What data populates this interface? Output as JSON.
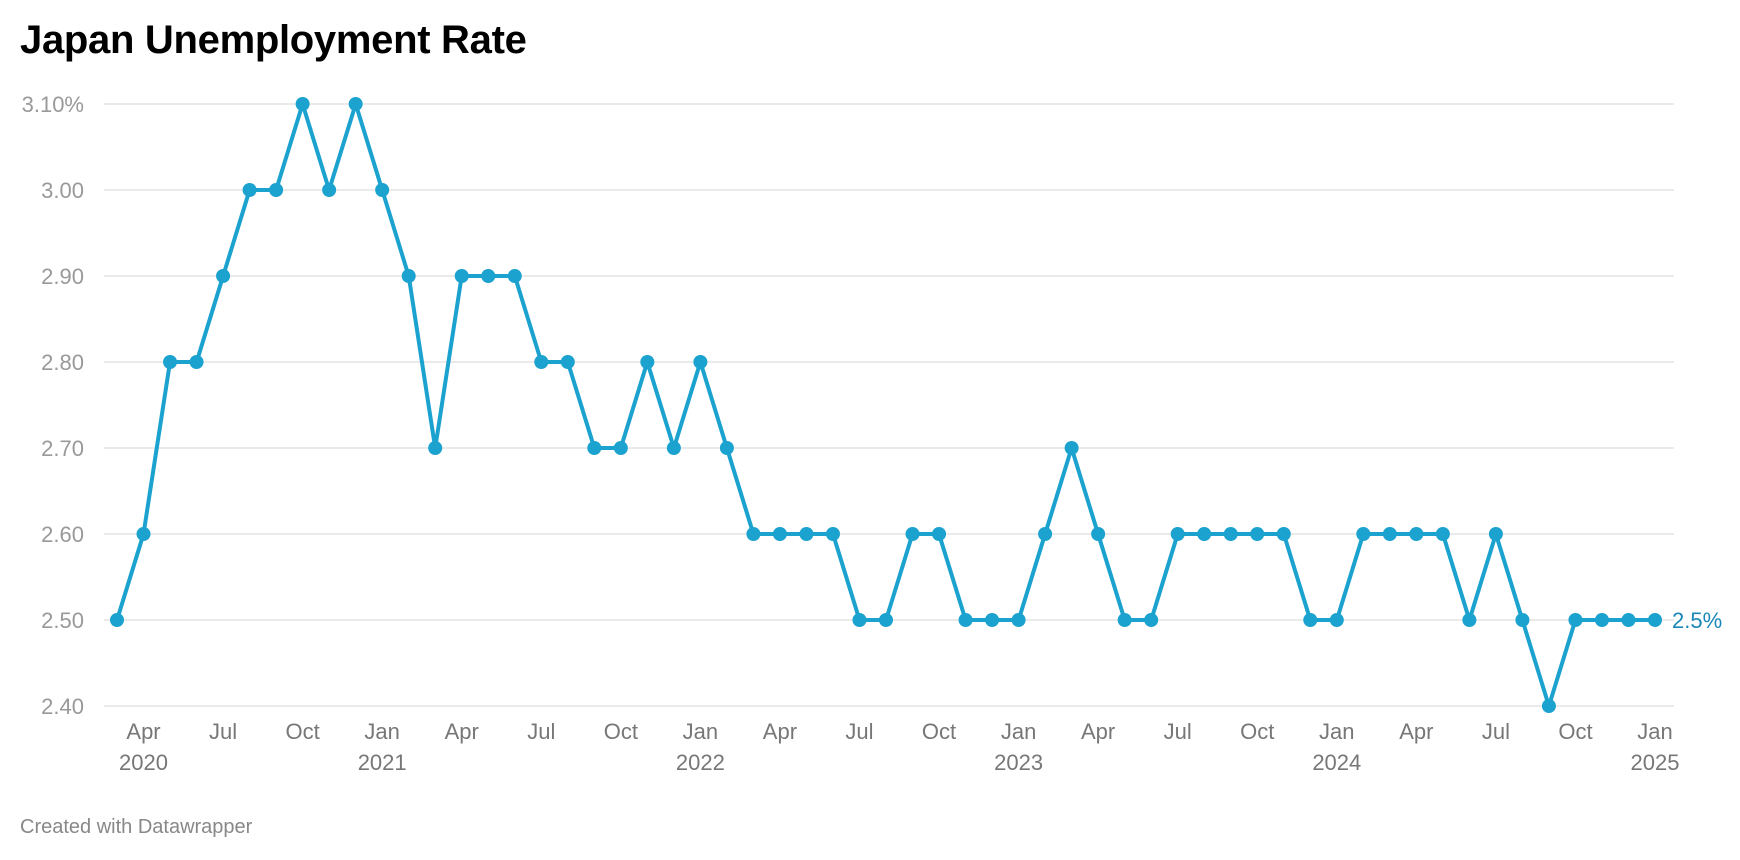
{
  "title": "Japan Unemployment Rate",
  "footer": "Created with Datawrapper",
  "colors": {
    "line": "#1ba2cf",
    "end_label": "#1a87b8",
    "grid": "#e3e3e3"
  },
  "chart_data": {
    "type": "line",
    "title": "Japan Unemployment Rate",
    "xlabel": "",
    "ylabel": "",
    "ylim": [
      2.4,
      3.1
    ],
    "y_ticks": [
      {
        "value": 3.1,
        "label": "3.10%"
      },
      {
        "value": 3.0,
        "label": "3.00"
      },
      {
        "value": 2.9,
        "label": "2.90"
      },
      {
        "value": 2.8,
        "label": "2.80"
      },
      {
        "value": 2.7,
        "label": "2.70"
      },
      {
        "value": 2.6,
        "label": "2.60"
      },
      {
        "value": 2.5,
        "label": "2.50"
      },
      {
        "value": 2.4,
        "label": "2.40"
      }
    ],
    "x_ticks": [
      {
        "date": "2020-04",
        "label": "Apr",
        "year": "2020"
      },
      {
        "date": "2020-07",
        "label": "Jul",
        "year": ""
      },
      {
        "date": "2020-10",
        "label": "Oct",
        "year": ""
      },
      {
        "date": "2021-01",
        "label": "Jan",
        "year": "2021"
      },
      {
        "date": "2021-04",
        "label": "Apr",
        "year": ""
      },
      {
        "date": "2021-07",
        "label": "Jul",
        "year": ""
      },
      {
        "date": "2021-10",
        "label": "Oct",
        "year": ""
      },
      {
        "date": "2022-01",
        "label": "Jan",
        "year": "2022"
      },
      {
        "date": "2022-04",
        "label": "Apr",
        "year": ""
      },
      {
        "date": "2022-07",
        "label": "Jul",
        "year": ""
      },
      {
        "date": "2022-10",
        "label": "Oct",
        "year": ""
      },
      {
        "date": "2023-01",
        "label": "Jan",
        "year": "2023"
      },
      {
        "date": "2023-04",
        "label": "Apr",
        "year": ""
      },
      {
        "date": "2023-07",
        "label": "Jul",
        "year": ""
      },
      {
        "date": "2023-10",
        "label": "Oct",
        "year": ""
      },
      {
        "date": "2024-01",
        "label": "Jan",
        "year": "2024"
      },
      {
        "date": "2024-04",
        "label": "Apr",
        "year": ""
      },
      {
        "date": "2024-07",
        "label": "Jul",
        "year": ""
      },
      {
        "date": "2024-10",
        "label": "Oct",
        "year": ""
      },
      {
        "date": "2025-01",
        "label": "Jan",
        "year": "2025"
      }
    ],
    "grid": true,
    "x": [
      "2020-03",
      "2020-04",
      "2020-05",
      "2020-06",
      "2020-07",
      "2020-08",
      "2020-09",
      "2020-10",
      "2020-11",
      "2020-12",
      "2021-01",
      "2021-02",
      "2021-03",
      "2021-04",
      "2021-05",
      "2021-06",
      "2021-07",
      "2021-08",
      "2021-09",
      "2021-10",
      "2021-11",
      "2021-12",
      "2022-01",
      "2022-02",
      "2022-03",
      "2022-04",
      "2022-05",
      "2022-06",
      "2022-07",
      "2022-08",
      "2022-09",
      "2022-10",
      "2022-11",
      "2022-12",
      "2023-01",
      "2023-02",
      "2023-03",
      "2023-04",
      "2023-05",
      "2023-06",
      "2023-07",
      "2023-08",
      "2023-09",
      "2023-10",
      "2023-11",
      "2023-12",
      "2024-01",
      "2024-02",
      "2024-03",
      "2024-04",
      "2024-05",
      "2024-06",
      "2024-07",
      "2024-08",
      "2024-09",
      "2024-10",
      "2024-11",
      "2024-12",
      "2025-01"
    ],
    "series": [
      {
        "values": [
          2.5,
          2.6,
          2.8,
          2.8,
          2.9,
          3.0,
          3.0,
          3.1,
          3.0,
          3.1,
          3.0,
          2.9,
          2.7,
          2.9,
          2.9,
          2.9,
          2.8,
          2.8,
          2.7,
          2.7,
          2.8,
          2.7,
          2.8,
          2.7,
          2.6,
          2.6,
          2.6,
          2.6,
          2.5,
          2.5,
          2.6,
          2.6,
          2.5,
          2.5,
          2.5,
          2.6,
          2.7,
          2.6,
          2.5,
          2.5,
          2.6,
          2.6,
          2.6,
          2.6,
          2.6,
          2.5,
          2.5,
          2.6,
          2.6,
          2.6,
          2.6,
          2.5,
          2.6,
          2.5,
          2.4,
          2.5,
          2.5,
          2.5,
          2.5
        ]
      }
    ],
    "end_label": "2.5%"
  }
}
